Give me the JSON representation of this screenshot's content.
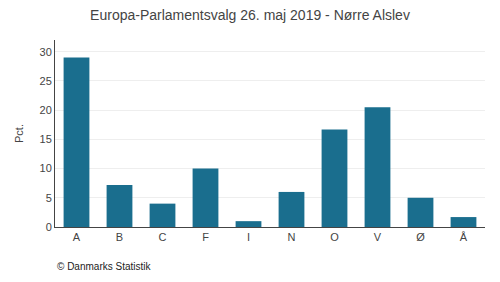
{
  "chart_data": {
    "type": "bar",
    "title": "Europa-Parlamentsvalg 26. maj 2019 - Nørre Alslev",
    "ylabel": "Pct.",
    "annotations": [
      "© Danmarks Statistik"
    ],
    "categories": [
      "A",
      "B",
      "C",
      "F",
      "I",
      "N",
      "O",
      "V",
      "Ø",
      "Å"
    ],
    "values": [
      29.0,
      7.2,
      4.0,
      10.0,
      1.0,
      6.0,
      16.7,
      20.5,
      5.0,
      1.7
    ],
    "color": "#1a6e8e",
    "ylim": [
      0,
      32
    ],
    "yticks": [
      0,
      5,
      10,
      15,
      20,
      25,
      30
    ],
    "grid": true
  }
}
